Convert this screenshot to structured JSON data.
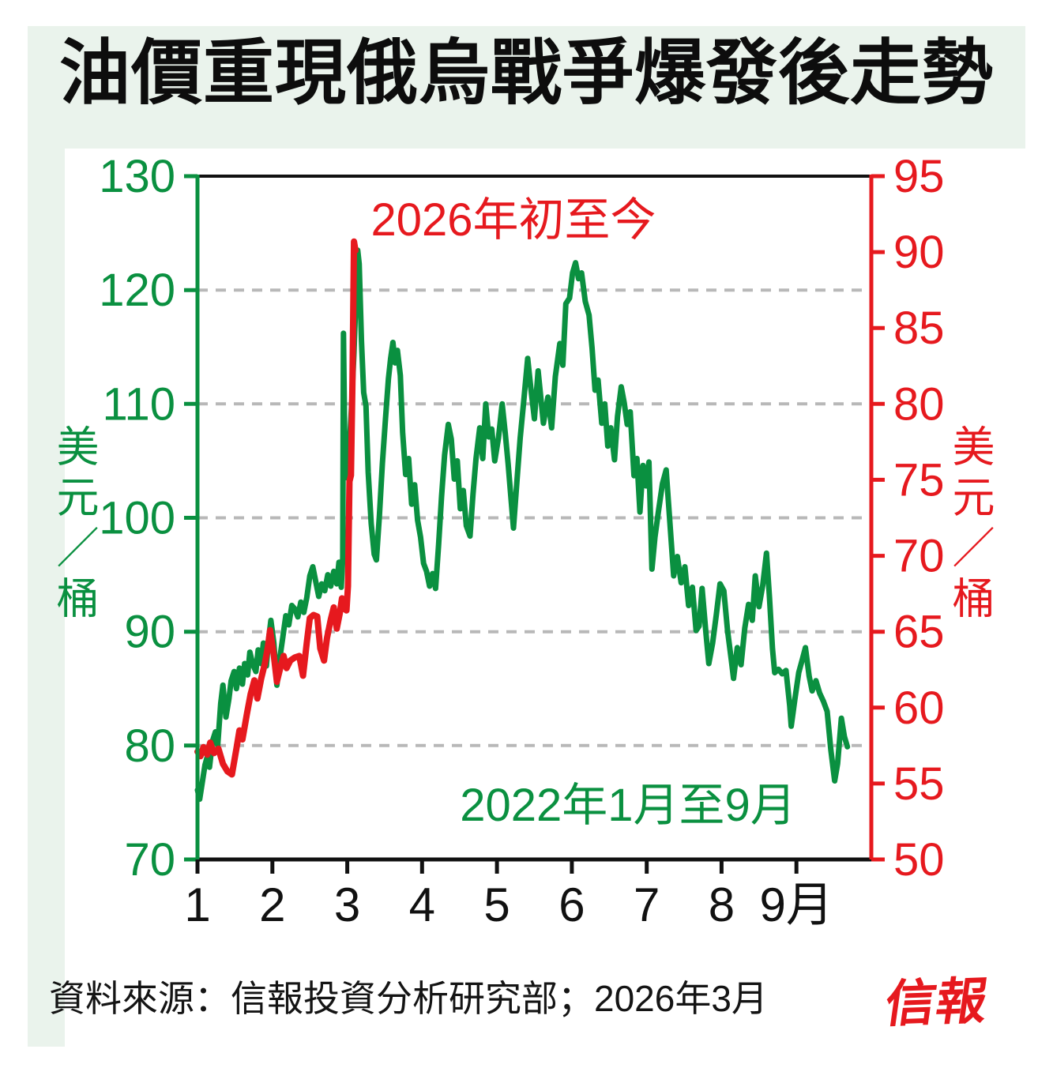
{
  "page": {
    "title": "油價重現俄烏戰爭爆發後走勢"
  },
  "annotations": {
    "red_series_label": "2026年初至今",
    "green_series_label": "2022年1月至9月"
  },
  "axis_labels": {
    "left": "美元／桶",
    "right": "美元／桶"
  },
  "footer": {
    "source": "資料來源：信報投資分析研究部；2026年3月",
    "logo": "信報"
  },
  "colors": {
    "green": "#0a9040",
    "red": "#e6191e",
    "card_bg": "#eaf3ec",
    "grid": "#b8b8b8",
    "axis_black": "#111111"
  },
  "chart_data": {
    "type": "line",
    "title": "油價重現俄烏戰爭爆發後走勢",
    "grid": "horizontal-dashed",
    "x_axis": {
      "range": [
        1,
        10
      ],
      "tick_months": [
        1,
        2,
        3,
        4,
        5,
        6,
        7,
        8,
        9
      ],
      "tick_labels": [
        "1",
        "2",
        "3",
        "4",
        "5",
        "6",
        "7",
        "8",
        "9月"
      ]
    },
    "left_axis": {
      "label": "美元／桶",
      "min": 70,
      "max": 130,
      "ticks": [
        130,
        120,
        110,
        100,
        90,
        80,
        70
      ]
    },
    "right_axis": {
      "label": "美元／桶",
      "min": 50,
      "max": 95,
      "ticks": [
        95,
        90,
        85,
        80,
        75,
        70,
        65,
        60,
        55,
        50
      ]
    },
    "gridlines_left_values": [
      120,
      110,
      100,
      90,
      80
    ],
    "series": [
      {
        "name": "2022年1月至9月",
        "axis": "left",
        "color": "#0a9040",
        "stroke_width": 7,
        "points": [
          [
            1.0,
            76.1
          ],
          [
            1.03,
            75.3
          ],
          [
            1.06,
            76.6
          ],
          [
            1.1,
            78.3
          ],
          [
            1.13,
            79.0
          ],
          [
            1.16,
            78.1
          ],
          [
            1.2,
            80.4
          ],
          [
            1.24,
            81.2
          ],
          [
            1.27,
            80.0
          ],
          [
            1.31,
            83.7
          ],
          [
            1.34,
            85.3
          ],
          [
            1.38,
            82.5
          ],
          [
            1.42,
            84.1
          ],
          [
            1.45,
            85.7
          ],
          [
            1.49,
            86.5
          ],
          [
            1.52,
            85.0
          ],
          [
            1.56,
            86.8
          ],
          [
            1.6,
            85.4
          ],
          [
            1.63,
            87.2
          ],
          [
            1.67,
            86.2
          ],
          [
            1.7,
            88.2
          ],
          [
            1.74,
            87.1
          ],
          [
            1.78,
            86.5
          ],
          [
            1.81,
            88.4
          ],
          [
            1.85,
            87.2
          ],
          [
            1.88,
            89.0
          ],
          [
            1.92,
            87.0
          ],
          [
            1.95,
            89.3
          ],
          [
            1.98,
            91.0
          ],
          [
            2.02,
            89.0
          ],
          [
            2.06,
            85.3
          ],
          [
            2.1,
            87.7
          ],
          [
            2.14,
            89.5
          ],
          [
            2.18,
            91.4
          ],
          [
            2.22,
            90.6
          ],
          [
            2.26,
            92.3
          ],
          [
            2.3,
            92.0
          ],
          [
            2.34,
            91.3
          ],
          [
            2.38,
            92.6
          ],
          [
            2.42,
            91.7
          ],
          [
            2.46,
            93.0
          ],
          [
            2.5,
            94.9
          ],
          [
            2.54,
            95.7
          ],
          [
            2.58,
            94.4
          ],
          [
            2.62,
            93.1
          ],
          [
            2.66,
            94.2
          ],
          [
            2.7,
            93.6
          ],
          [
            2.74,
            95.0
          ],
          [
            2.78,
            94.0
          ],
          [
            2.82,
            95.3
          ],
          [
            2.86,
            94.2
          ],
          [
            2.89,
            96.1
          ],
          [
            2.92,
            93.9
          ],
          [
            2.94,
            96.5
          ],
          [
            2.95,
            116.2
          ],
          [
            2.97,
            104.8
          ],
          [
            3.0,
            103.5
          ],
          [
            3.03,
            106.5
          ],
          [
            3.06,
            110.0
          ],
          [
            3.09,
            114.5
          ],
          [
            3.12,
            120.0
          ],
          [
            3.14,
            123.5
          ],
          [
            3.16,
            122.3
          ],
          [
            3.19,
            115.5
          ],
          [
            3.22,
            111.0
          ],
          [
            3.25,
            109.8
          ],
          [
            3.28,
            104.0
          ],
          [
            3.32,
            99.5
          ],
          [
            3.36,
            96.8
          ],
          [
            3.39,
            96.3
          ],
          [
            3.43,
            100.2
          ],
          [
            3.47,
            104.8
          ],
          [
            3.51,
            108.6
          ],
          [
            3.55,
            112.2
          ],
          [
            3.58,
            114.0
          ],
          [
            3.61,
            115.4
          ],
          [
            3.64,
            113.6
          ],
          [
            3.67,
            114.7
          ],
          [
            3.71,
            112.5
          ],
          [
            3.74,
            107.5
          ],
          [
            3.78,
            103.8
          ],
          [
            3.82,
            105.2
          ],
          [
            3.86,
            101.2
          ],
          [
            3.9,
            102.9
          ],
          [
            3.94,
            99.8
          ],
          [
            3.98,
            98.3
          ],
          [
            4.02,
            96.0
          ],
          [
            4.06,
            95.3
          ],
          [
            4.1,
            94.0
          ],
          [
            4.14,
            95.1
          ],
          [
            4.18,
            93.8
          ],
          [
            4.22,
            97.6
          ],
          [
            4.26,
            101.9
          ],
          [
            4.3,
            105.5
          ],
          [
            4.35,
            108.2
          ],
          [
            4.39,
            106.9
          ],
          [
            4.43,
            103.4
          ],
          [
            4.47,
            105.0
          ],
          [
            4.51,
            100.8
          ],
          [
            4.55,
            102.4
          ],
          [
            4.59,
            99.3
          ],
          [
            4.64,
            98.4
          ],
          [
            4.68,
            102.1
          ],
          [
            4.72,
            105.2
          ],
          [
            4.77,
            107.9
          ],
          [
            4.81,
            105.2
          ],
          [
            4.85,
            110.0
          ],
          [
            4.89,
            107.1
          ],
          [
            4.93,
            107.8
          ],
          [
            4.97,
            105.0
          ],
          [
            5.02,
            107.0
          ],
          [
            5.07,
            110.0
          ],
          [
            5.11,
            107.5
          ],
          [
            5.15,
            104.7
          ],
          [
            5.19,
            101.5
          ],
          [
            5.22,
            99.1
          ],
          [
            5.27,
            103.5
          ],
          [
            5.31,
            107.0
          ],
          [
            5.36,
            110.4
          ],
          [
            5.41,
            114.0
          ],
          [
            5.45,
            111.5
          ],
          [
            5.5,
            108.7
          ],
          [
            5.55,
            112.9
          ],
          [
            5.62,
            108.3
          ],
          [
            5.68,
            110.6
          ],
          [
            5.73,
            107.9
          ],
          [
            5.78,
            112.4
          ],
          [
            5.84,
            115.3
          ],
          [
            5.88,
            113.4
          ],
          [
            5.92,
            118.8
          ],
          [
            5.97,
            119.3
          ],
          [
            6.01,
            121.5
          ],
          [
            6.05,
            122.4
          ],
          [
            6.09,
            121.0
          ],
          [
            6.13,
            121.5
          ],
          [
            6.18,
            119.0
          ],
          [
            6.23,
            117.8
          ],
          [
            6.27,
            114.9
          ],
          [
            6.31,
            111.2
          ],
          [
            6.35,
            112.1
          ],
          [
            6.4,
            108.3
          ],
          [
            6.44,
            110.0
          ],
          [
            6.48,
            106.3
          ],
          [
            6.52,
            107.9
          ],
          [
            6.57,
            105.1
          ],
          [
            6.61,
            108.9
          ],
          [
            6.66,
            111.5
          ],
          [
            6.7,
            110.1
          ],
          [
            6.74,
            108.2
          ],
          [
            6.78,
            109.3
          ],
          [
            6.83,
            103.7
          ],
          [
            6.87,
            105.2
          ],
          [
            6.91,
            100.5
          ],
          [
            6.95,
            104.6
          ],
          [
            6.99,
            102.8
          ],
          [
            7.03,
            104.9
          ],
          [
            7.07,
            95.5
          ],
          [
            7.11,
            98.3
          ],
          [
            7.16,
            100.7
          ],
          [
            7.21,
            103.0
          ],
          [
            7.26,
            104.2
          ],
          [
            7.31,
            99.6
          ],
          [
            7.36,
            94.9
          ],
          [
            7.41,
            96.6
          ],
          [
            7.46,
            94.3
          ],
          [
            7.51,
            95.7
          ],
          [
            7.56,
            92.3
          ],
          [
            7.61,
            93.9
          ],
          [
            7.66,
            90.1
          ],
          [
            7.7,
            90.5
          ],
          [
            7.74,
            93.8
          ],
          [
            7.79,
            90.0
          ],
          [
            7.83,
            87.2
          ],
          [
            7.88,
            89.0
          ],
          [
            7.93,
            91.5
          ],
          [
            7.98,
            94.2
          ],
          [
            8.03,
            93.6
          ],
          [
            8.08,
            90.1
          ],
          [
            8.13,
            87.5
          ],
          [
            8.16,
            85.9
          ],
          [
            8.21,
            88.6
          ],
          [
            8.26,
            87.1
          ],
          [
            8.31,
            90.3
          ],
          [
            8.36,
            92.4
          ],
          [
            8.41,
            91.0
          ],
          [
            8.45,
            94.9
          ],
          [
            8.5,
            92.2
          ],
          [
            8.55,
            94.1
          ],
          [
            8.6,
            96.9
          ],
          [
            8.64,
            93.0
          ],
          [
            8.68,
            88.5
          ],
          [
            8.71,
            86.4
          ],
          [
            8.76,
            86.7
          ],
          [
            8.81,
            86.3
          ],
          [
            8.86,
            86.6
          ],
          [
            8.91,
            83.5
          ],
          [
            8.93,
            81.7
          ],
          [
            8.98,
            84.1
          ],
          [
            9.03,
            86.4
          ],
          [
            9.08,
            87.6
          ],
          [
            9.12,
            88.6
          ],
          [
            9.17,
            86.1
          ],
          [
            9.21,
            84.8
          ],
          [
            9.26,
            85.7
          ],
          [
            9.31,
            84.6
          ],
          [
            9.36,
            83.9
          ],
          [
            9.41,
            83.0
          ],
          [
            9.46,
            79.6
          ],
          [
            9.51,
            76.9
          ],
          [
            9.55,
            78.4
          ],
          [
            9.6,
            82.4
          ],
          [
            9.64,
            80.8
          ],
          [
            9.68,
            79.9
          ]
        ]
      },
      {
        "name": "2026年初至今",
        "axis": "right",
        "color": "#e6191e",
        "stroke_width": 8,
        "points": [
          [
            1.0,
            57.1
          ],
          [
            1.04,
            56.8
          ],
          [
            1.08,
            57.4
          ],
          [
            1.13,
            56.9
          ],
          [
            1.17,
            57.7
          ],
          [
            1.22,
            57.0
          ],
          [
            1.28,
            57.3
          ],
          [
            1.34,
            56.3
          ],
          [
            1.4,
            55.8
          ],
          [
            1.46,
            55.6
          ],
          [
            1.52,
            57.3
          ],
          [
            1.56,
            58.5
          ],
          [
            1.6,
            57.9
          ],
          [
            1.66,
            59.6
          ],
          [
            1.71,
            60.9
          ],
          [
            1.76,
            61.8
          ],
          [
            1.8,
            60.6
          ],
          [
            1.85,
            61.9
          ],
          [
            1.9,
            62.9
          ],
          [
            1.94,
            64.0
          ],
          [
            1.97,
            65.1
          ],
          [
            2.02,
            63.4
          ],
          [
            2.06,
            61.7
          ],
          [
            2.11,
            62.7
          ],
          [
            2.15,
            63.4
          ],
          [
            2.19,
            62.6
          ],
          [
            2.24,
            63.1
          ],
          [
            2.3,
            63.3
          ],
          [
            2.36,
            63.4
          ],
          [
            2.41,
            62.1
          ],
          [
            2.46,
            64.3
          ],
          [
            2.5,
            65.9
          ],
          [
            2.55,
            66.1
          ],
          [
            2.6,
            66.0
          ],
          [
            2.64,
            63.9
          ],
          [
            2.69,
            63.1
          ],
          [
            2.73,
            64.6
          ],
          [
            2.78,
            65.8
          ],
          [
            2.82,
            66.6
          ],
          [
            2.86,
            65.2
          ],
          [
            2.9,
            66.2
          ],
          [
            2.93,
            67.2
          ],
          [
            2.96,
            66.5
          ],
          [
            2.99,
            66.4
          ],
          [
            3.01,
            68.0
          ],
          [
            3.03,
            74.9
          ],
          [
            3.05,
            75.3
          ],
          [
            3.07,
            81.5
          ],
          [
            3.09,
            90.7
          ],
          [
            3.11,
            90.1
          ]
        ]
      }
    ]
  }
}
